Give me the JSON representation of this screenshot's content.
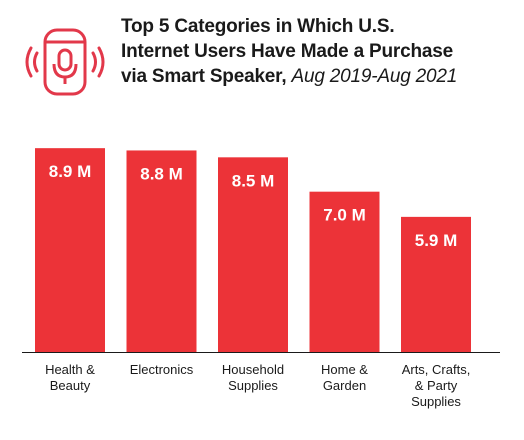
{
  "header": {
    "title_line1": "Top 5 Categories in Which U.S.",
    "title_line2": "Internet Users Have Made a Purchase",
    "title_line3": "via Smart Speaker,",
    "title_date": "Aug 2019-Aug 2021",
    "icon": "smart-speaker-icon"
  },
  "chart_data": {
    "type": "bar",
    "title": "Top 5 Categories in Which U.S. Internet Users Have Made a Purchase via Smart Speaker, Aug 2019-Aug 2021",
    "categories": [
      [
        "Health &",
        "Beauty"
      ],
      [
        "Electronics"
      ],
      [
        "Household",
        "Supplies"
      ],
      [
        "Home &",
        "Garden"
      ],
      [
        "Arts, Crafts,",
        "& Party",
        "Supplies"
      ]
    ],
    "values": [
      8.9,
      8.8,
      8.5,
      7.0,
      5.9
    ],
    "value_labels": [
      "8.9 M",
      "8.8 M",
      "8.5 M",
      "7.0 M",
      "5.9 M"
    ],
    "ylim": [
      0,
      9.3
    ],
    "grid": false,
    "colors": {
      "bar": "#ec3338",
      "bar_text": "#ffffff",
      "axis": "#1a1a1a",
      "icon": "#e2384a"
    }
  }
}
